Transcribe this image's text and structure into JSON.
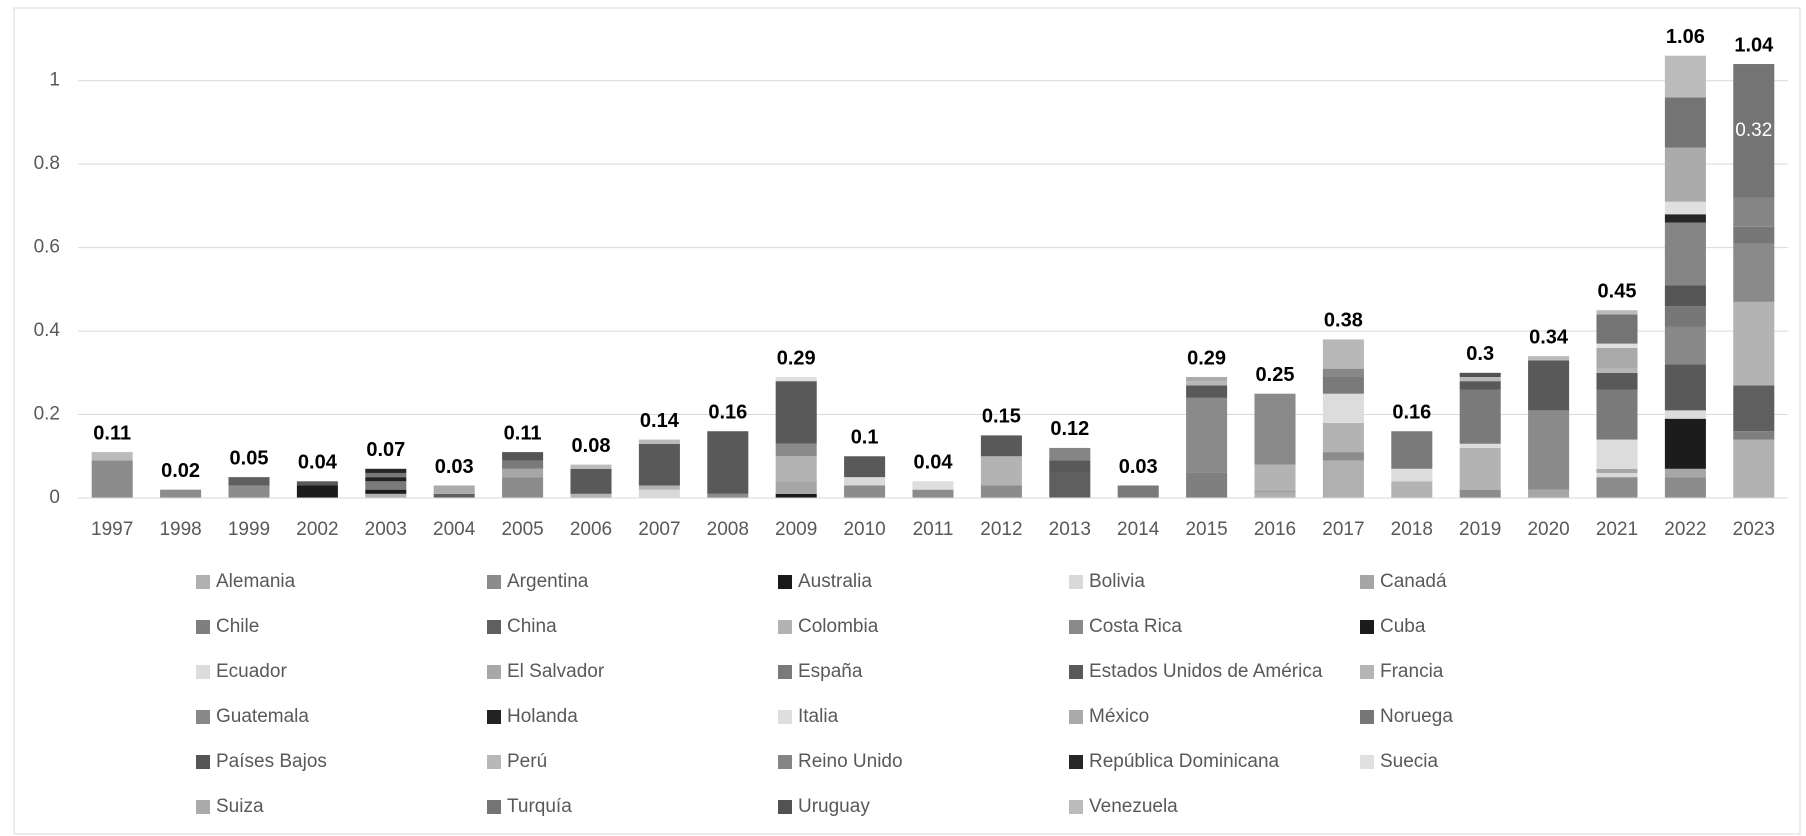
{
  "chart_data": {
    "type": "stacked_bar",
    "categories": [
      "1997",
      "1998",
      "1999",
      "2002",
      "2003",
      "2004",
      "2005",
      "2006",
      "2007",
      "2008",
      "2009",
      "2010",
      "2011",
      "2012",
      "2013",
      "2014",
      "2015",
      "2016",
      "2017",
      "2018",
      "2019",
      "2020",
      "2021",
      "2022",
      "2023"
    ],
    "totals": [
      0.11,
      0.02,
      0.05,
      0.04,
      0.07,
      0.03,
      0.11,
      0.08,
      0.14,
      0.16,
      0.29,
      0.1,
      0.04,
      0.15,
      0.12,
      0.03,
      0.29,
      0.25,
      0.38,
      0.16,
      0.3,
      0.34,
      0.45,
      1.06,
      1.04
    ],
    "ylim": [
      0,
      1.1
    ],
    "yticks": [
      0,
      0.2,
      0.4,
      0.6,
      0.8,
      1
    ],
    "grid": true,
    "legend": "bottom",
    "series": [
      {
        "name": "Alemania",
        "color": "#b0b0b0",
        "values": [
          0,
          0,
          0,
          0,
          0,
          0,
          0,
          0,
          0,
          0,
          0,
          0,
          0,
          0,
          0,
          0,
          0,
          0.01,
          0.09,
          0,
          0,
          0,
          0,
          0,
          0.14
        ]
      },
      {
        "name": "Argentina",
        "color": "#8c8c8c",
        "values": [
          0.09,
          0.02,
          0.03,
          0,
          0,
          0,
          0.05,
          0,
          0,
          0.01,
          0,
          0.03,
          0.02,
          0.03,
          0,
          0,
          0,
          0,
          0.02,
          0,
          0.02,
          0,
          0.05,
          0.05,
          0
        ]
      },
      {
        "name": "Australia",
        "color": "#1a1a1a",
        "values": [
          0,
          0,
          0,
          0,
          0,
          0,
          0,
          0,
          0,
          0,
          0.01,
          0,
          0,
          0,
          0,
          0,
          0,
          0,
          0,
          0,
          0,
          0,
          0,
          0,
          0
        ]
      },
      {
        "name": "Bolivia",
        "color": "#d9d9d9",
        "values": [
          0,
          0,
          0,
          0,
          0,
          0,
          0,
          0,
          0.02,
          0,
          0,
          0.02,
          0,
          0,
          0,
          0,
          0,
          0,
          0,
          0,
          0,
          0,
          0.01,
          0,
          0
        ]
      },
      {
        "name": "Canadá",
        "color": "#a6a6a6",
        "values": [
          0,
          0,
          0,
          0,
          0,
          0,
          0.02,
          0,
          0,
          0,
          0.03,
          0,
          0,
          0,
          0,
          0,
          0,
          0.01,
          0,
          0,
          0,
          0.02,
          0.01,
          0.02,
          0
        ]
      },
      {
        "name": "Chile",
        "color": "#7f7f7f",
        "values": [
          0,
          0,
          0,
          0,
          0,
          0,
          0,
          0,
          0,
          0,
          0,
          0,
          0,
          0,
          0,
          0,
          0.06,
          0,
          0,
          0,
          0,
          0,
          0,
          0,
          0.02
        ]
      },
      {
        "name": "China",
        "color": "#5f5f5f",
        "values": [
          0,
          0,
          0.02,
          0,
          0,
          0.01,
          0,
          0,
          0,
          0,
          0,
          0,
          0,
          0,
          0.06,
          0,
          0,
          0,
          0,
          0,
          0,
          0,
          0,
          0,
          0.11
        ]
      },
      {
        "name": "Colombia",
        "color": "#b3b3b3",
        "values": [
          0,
          0,
          0,
          0,
          0.01,
          0,
          0,
          0.01,
          0.01,
          0,
          0.06,
          0,
          0,
          0.07,
          0,
          0,
          0,
          0.06,
          0.07,
          0.04,
          0.1,
          0,
          0,
          0,
          0.2
        ]
      },
      {
        "name": "Costa Rica",
        "color": "#8a8a8a",
        "values": [
          0,
          0,
          0,
          0,
          0,
          0,
          0,
          0,
          0,
          0,
          0.03,
          0,
          0,
          0,
          0,
          0,
          0.18,
          0.17,
          0,
          0,
          0,
          0.19,
          0,
          0,
          0.14
        ]
      },
      {
        "name": "Cuba",
        "color": "#1c1c1c",
        "values": [
          0,
          0,
          0,
          0.03,
          0.01,
          0,
          0,
          0,
          0,
          0,
          0,
          0,
          0,
          0,
          0,
          0,
          0,
          0,
          0,
          0,
          0,
          0,
          0,
          0.12,
          0
        ]
      },
      {
        "name": "Ecuador",
        "color": "#dcdcdc",
        "values": [
          0,
          0,
          0,
          0,
          0,
          0,
          0,
          0,
          0,
          0,
          0,
          0,
          0,
          0,
          0,
          0,
          0,
          0,
          0.07,
          0.03,
          0.01,
          0,
          0.07,
          0.02,
          0
        ]
      },
      {
        "name": "El Salvador",
        "color": "#a8a8a8",
        "values": [
          0,
          0,
          0,
          0,
          0,
          0,
          0,
          0,
          0,
          0,
          0,
          0,
          0,
          0,
          0,
          0,
          0,
          0,
          0,
          0,
          0,
          0,
          0,
          0,
          0
        ]
      },
      {
        "name": "España",
        "color": "#7a7a7a",
        "values": [
          0,
          0,
          0,
          0,
          0.02,
          0,
          0.02,
          0,
          0,
          0,
          0,
          0,
          0,
          0,
          0,
          0.03,
          0,
          0,
          0.04,
          0.09,
          0.13,
          0,
          0.12,
          0,
          0
        ]
      },
      {
        "name": "Estados Unidos de América",
        "color": "#595959",
        "values": [
          0,
          0,
          0,
          0.01,
          0,
          0,
          0,
          0.06,
          0.1,
          0.15,
          0.15,
          0.05,
          0,
          0.05,
          0.03,
          0,
          0.03,
          0,
          0,
          0,
          0.02,
          0.12,
          0.04,
          0.11,
          0
        ]
      },
      {
        "name": "Francia",
        "color": "#b5b5b5",
        "values": [
          0,
          0,
          0,
          0,
          0,
          0,
          0,
          0,
          0,
          0,
          0,
          0,
          0,
          0,
          0,
          0,
          0,
          0,
          0,
          0,
          0,
          0,
          0.01,
          0,
          0
        ]
      },
      {
        "name": "Guatemala",
        "color": "#888888",
        "values": [
          0,
          0,
          0,
          0,
          0,
          0,
          0,
          0,
          0,
          0,
          0,
          0,
          0,
          0,
          0,
          0,
          0,
          0,
          0.02,
          0,
          0,
          0,
          0,
          0.09,
          0
        ]
      },
      {
        "name": "Holanda",
        "color": "#222222",
        "values": [
          0,
          0,
          0,
          0,
          0.01,
          0,
          0,
          0,
          0,
          0,
          0,
          0,
          0,
          0,
          0,
          0,
          0,
          0,
          0,
          0,
          0,
          0,
          0,
          0,
          0
        ]
      },
      {
        "name": "Italia",
        "color": "#dedede",
        "values": [
          0,
          0,
          0,
          0,
          0,
          0,
          0,
          0,
          0,
          0,
          0.01,
          0,
          0.02,
          0,
          0,
          0,
          0,
          0,
          0,
          0,
          0,
          0,
          0,
          0,
          0
        ]
      },
      {
        "name": "México",
        "color": "#aaaaaa",
        "values": [
          0,
          0,
          0,
          0,
          0,
          0,
          0,
          0,
          0,
          0,
          0,
          0,
          0,
          0,
          0,
          0,
          0,
          0,
          0,
          0,
          0,
          0,
          0.05,
          0,
          0
        ]
      },
      {
        "name": "Noruega",
        "color": "#777777",
        "values": [
          0,
          0,
          0,
          0,
          0.01,
          0,
          0,
          0,
          0,
          0,
          0,
          0,
          0,
          0,
          0,
          0,
          0,
          0,
          0,
          0,
          0,
          0,
          0,
          0.05,
          0.04
        ]
      },
      {
        "name": "Países Bajos",
        "color": "#555555",
        "values": [
          0,
          0,
          0,
          0,
          0,
          0,
          0.02,
          0,
          0,
          0,
          0,
          0,
          0,
          0,
          0,
          0,
          0,
          0,
          0,
          0,
          0,
          0,
          0,
          0.05,
          0
        ]
      },
      {
        "name": "Perú",
        "color": "#b8b8b8",
        "values": [
          0,
          0,
          0,
          0,
          0,
          0,
          0,
          0,
          0,
          0,
          0,
          0,
          0,
          0,
          0,
          0,
          0.01,
          0,
          0.07,
          0,
          0.01,
          0,
          0,
          0,
          0
        ]
      },
      {
        "name": "Reino Unido",
        "color": "#858585",
        "values": [
          0,
          0,
          0,
          0,
          0,
          0,
          0,
          0,
          0,
          0,
          0,
          0,
          0,
          0,
          0.03,
          0,
          0,
          0,
          0,
          0,
          0,
          0,
          0,
          0.15,
          0.07
        ]
      },
      {
        "name": "República Dominicana",
        "color": "#262626",
        "values": [
          0,
          0,
          0,
          0,
          0.01,
          0,
          0,
          0,
          0,
          0,
          0,
          0,
          0,
          0,
          0,
          0,
          0,
          0,
          0,
          0,
          0,
          0,
          0,
          0.02,
          0
        ]
      },
      {
        "name": "Suecia",
        "color": "#e0e0e0",
        "values": [
          0,
          0,
          0,
          0,
          0,
          0,
          0,
          0,
          0,
          0,
          0,
          0,
          0,
          0,
          0,
          0,
          0,
          0,
          0,
          0,
          0,
          0,
          0.01,
          0.03,
          0
        ]
      },
      {
        "name": "Suiza",
        "color": "#ababab",
        "values": [
          0,
          0,
          0,
          0,
          0,
          0.02,
          0,
          0,
          0,
          0,
          0,
          0,
          0,
          0,
          0,
          0,
          0.01,
          0,
          0,
          0,
          0,
          0,
          0,
          0.13,
          0
        ]
      },
      {
        "name": "Turquía",
        "color": "#747474",
        "values": [
          0,
          0,
          0,
          0,
          0,
          0,
          0,
          0,
          0,
          0,
          0,
          0,
          0,
          0,
          0,
          0,
          0,
          0,
          0,
          0,
          0,
          0,
          0.07,
          0.12,
          0.32
        ],
        "value_labels": [
          null,
          null,
          null,
          null,
          null,
          null,
          null,
          null,
          null,
          null,
          null,
          null,
          null,
          null,
          null,
          null,
          null,
          null,
          null,
          null,
          null,
          null,
          null,
          null,
          "0.32"
        ]
      },
      {
        "name": "Uruguay",
        "color": "#525252",
        "values": [
          0,
          0,
          0,
          0,
          0,
          0,
          0,
          0,
          0,
          0,
          0,
          0,
          0,
          0,
          0,
          0,
          0,
          0,
          0,
          0,
          0.01,
          0,
          0,
          0,
          0
        ]
      },
      {
        "name": "Venezuela",
        "color": "#bbbbbb",
        "values": [
          0.02,
          0,
          0,
          0,
          0,
          0,
          0,
          0.01,
          0.01,
          0,
          0,
          0,
          0,
          0,
          0,
          0,
          0,
          0,
          0,
          0,
          0,
          0.01,
          0.01,
          0.1,
          0
        ]
      }
    ]
  }
}
